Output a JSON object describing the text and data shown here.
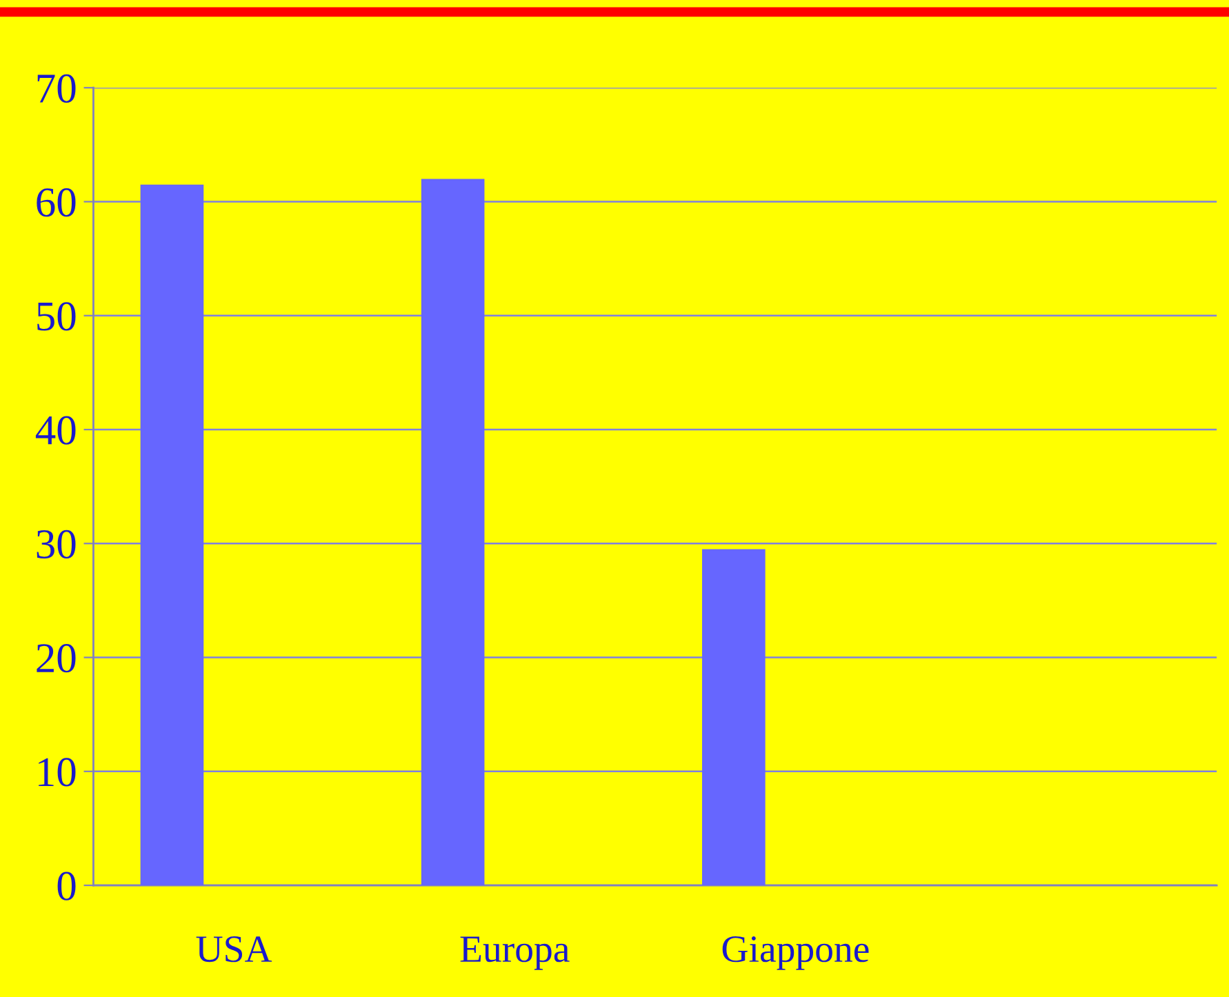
{
  "chart_data": {
    "type": "bar",
    "categories": [
      "USA",
      "Europa",
      "Giappone",
      null
    ],
    "values": [
      61.5,
      62,
      29.5,
      null
    ],
    "color": "#6666ff",
    "ylim": [
      0,
      70
    ],
    "yticks": [
      0,
      10,
      20,
      30,
      40,
      50,
      60,
      70
    ],
    "grid": "y"
  }
}
